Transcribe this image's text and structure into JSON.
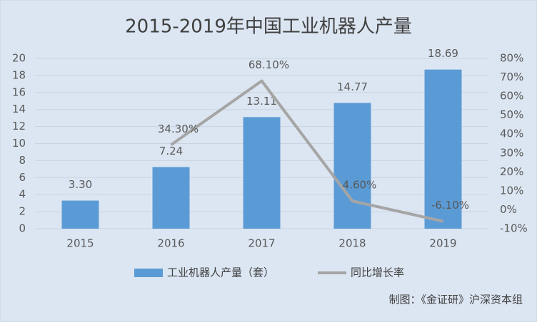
{
  "chart_data": {
    "type": "bar",
    "title": "2015-2019年中国工业机器人产量",
    "categories": [
      "2015",
      "2016",
      "2017",
      "2018",
      "2019"
    ],
    "series": [
      {
        "name": "工业机器人产量（套）",
        "type": "bar",
        "color": "#5b9bd5",
        "values": [
          3.3,
          7.24,
          13.11,
          14.77,
          18.69
        ],
        "value_labels": [
          "3.30",
          "7.24",
          "13.11",
          "14.77",
          "18.69"
        ]
      },
      {
        "name": "同比增长率",
        "type": "line",
        "axis": "y2",
        "color": "#a5a5a5",
        "values": [
          null,
          34.3,
          68.1,
          4.6,
          -6.1
        ],
        "value_labels": [
          null,
          "34.30%",
          "68.10%",
          "4.60%",
          "-6.10%"
        ]
      }
    ],
    "ylim": [
      0,
      20
    ],
    "yticks": [
      0,
      2,
      4,
      6,
      8,
      10,
      12,
      14,
      16,
      18,
      20
    ],
    "y2lim": [
      -10,
      80
    ],
    "y2ticks": [
      {
        "value": -10,
        "label": "-10%"
      },
      {
        "value": 0,
        "label": "0%"
      },
      {
        "value": 10,
        "label": "10%"
      },
      {
        "value": 20,
        "label": "20%"
      },
      {
        "value": 30,
        "label": "30%"
      },
      {
        "value": 40,
        "label": "40%"
      },
      {
        "value": 50,
        "label": "50%"
      },
      {
        "value": 60,
        "label": "60%"
      },
      {
        "value": 70,
        "label": "70%"
      },
      {
        "value": 80,
        "label": "80%"
      }
    ],
    "grid": true,
    "legend": "bottom",
    "source": "制图：《金证研》沪深资本组"
  }
}
